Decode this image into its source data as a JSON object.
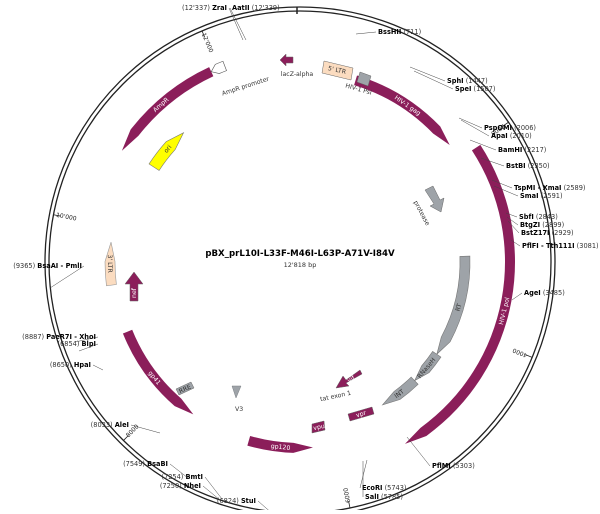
{
  "plasmid": {
    "name": "pBX_prL10I-L33F-M46I-L63P-A71V-I84V",
    "size_label": "12'818 bp",
    "length_bp": 12818
  },
  "colors": {
    "magenta": "#8B1E5A",
    "grey": "#9EA3A8",
    "peach": "#FBDCC0",
    "yellow": "#FFFF00",
    "backbone": "#222222"
  },
  "ticks": [
    {
      "bp": 2000,
      "label": "2000"
    },
    {
      "bp": 4000,
      "label": "4000"
    },
    {
      "bp": 6000,
      "label": "6000"
    },
    {
      "bp": 8000,
      "label": "8000"
    },
    {
      "bp": 10000,
      "label": "10'000"
    },
    {
      "bp": 12000,
      "label": "12'000"
    }
  ],
  "sites": [
    {
      "name": "ZraI",
      "pos": "(12'337)"
    },
    {
      "name": "AatII",
      "pos": "(12'339)"
    },
    {
      "name": "BssHII",
      "pos": "(711)"
    },
    {
      "name": "SphI",
      "pos": "(1447)"
    },
    {
      "name": "SpeI",
      "pos": "(1507)"
    },
    {
      "name": "PspOMI",
      "pos": "(2006)"
    },
    {
      "name": "ApaI",
      "pos": "(2010)"
    },
    {
      "name": "BamHI",
      "pos": "(2217)"
    },
    {
      "name": "BstBI",
      "pos": "(2350)"
    },
    {
      "name": "TspMI - XmaI",
      "pos": "(2589)"
    },
    {
      "name": "SmaI",
      "pos": "(2591)"
    },
    {
      "name": "SbfI",
      "pos": "(2843)"
    },
    {
      "name": "BtgZI",
      "pos": "(2899)"
    },
    {
      "name": "BstZ17I",
      "pos": "(2929)"
    },
    {
      "name": "PflFI - Tth111I",
      "pos": "(3081)"
    },
    {
      "name": "AgeI",
      "pos": "(3485)"
    },
    {
      "name": "PflMI",
      "pos": "(5303)"
    },
    {
      "name": "EcoRI",
      "pos": "(5743)"
    },
    {
      "name": "SalI",
      "pos": "(5785)"
    },
    {
      "name": "StuI",
      "pos": "(6824)"
    },
    {
      "name": "NheI",
      "pos": "(7250)"
    },
    {
      "name": "BmtI",
      "pos": "(7254)"
    },
    {
      "name": "BsaBI",
      "pos": "(7549)"
    },
    {
      "name": "AleI",
      "pos": "(8033)"
    },
    {
      "name": "HpaI",
      "pos": "(8650)"
    },
    {
      "name": "BlpI",
      "pos": "(6854)"
    },
    {
      "name": "PaeR7I - XhoI",
      "pos": "(8887)"
    },
    {
      "name": "BsaAI - PmlI",
      "pos": "(9365)"
    }
  ],
  "features": {
    "lacz": "lacZ-alpha",
    "ltr5": "5' LTR",
    "psi": "HIV-1 Psi",
    "gag": "HIV-1 gag",
    "protease": "protease",
    "rt": "RT",
    "rnaseh": "RNaseH",
    "int": "INT",
    "pol": "HIV-1 pol",
    "vif": "vif",
    "tat": "tat exon 1",
    "vpr": "vpr",
    "vpu": "vpu",
    "gp120": "gp120",
    "v3": "V3",
    "rre": "RRE",
    "gp41": "gp41",
    "nef": "nef",
    "ltr3": "3' LTR",
    "ori": "ori",
    "ampr": "AmpR",
    "ampr_promoter": "AmpR promoter"
  }
}
